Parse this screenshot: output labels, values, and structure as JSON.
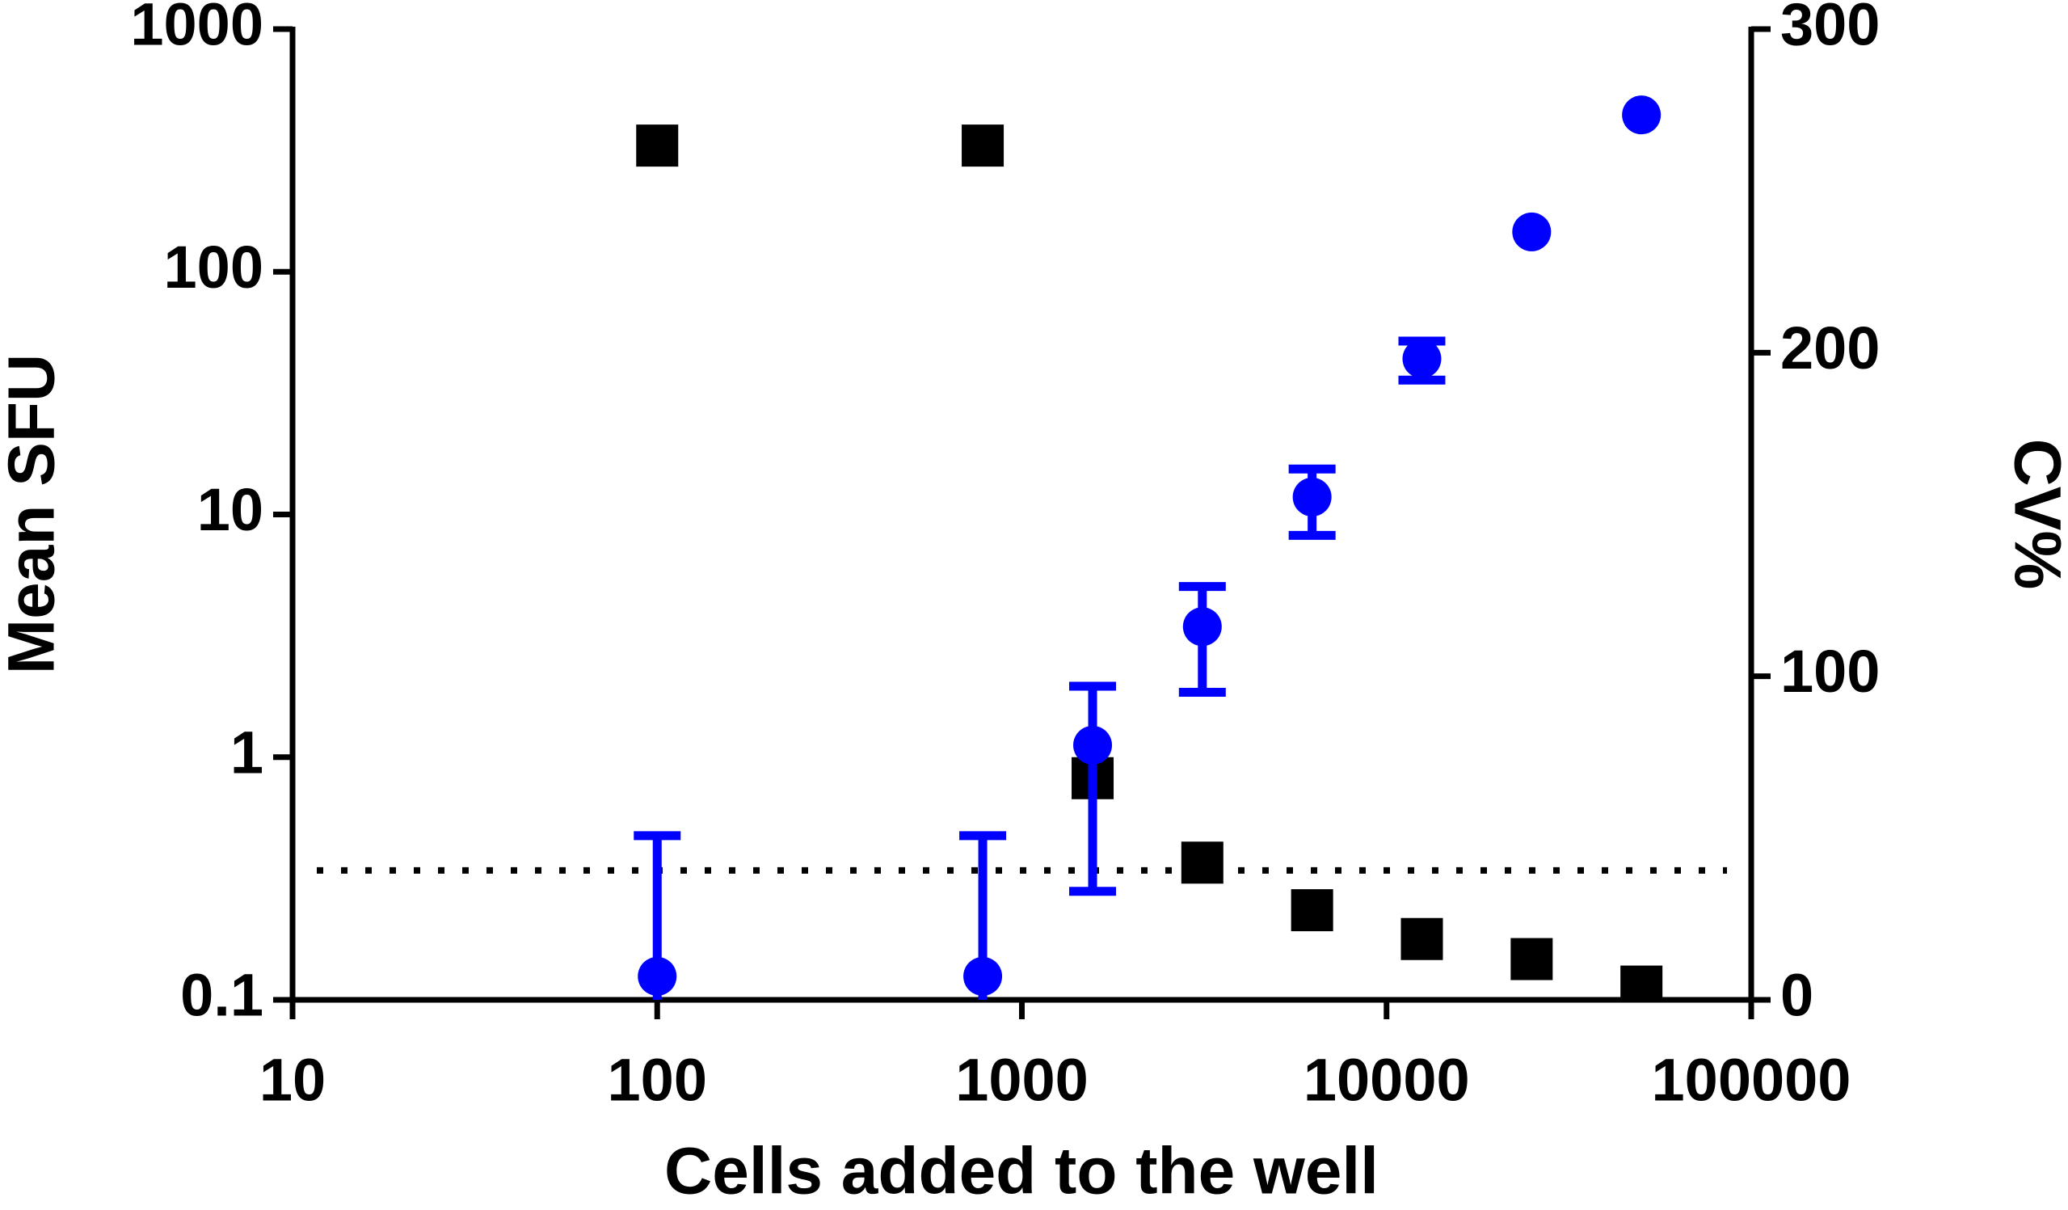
{
  "chart_data": {
    "type": "scatter",
    "x_label": "Cells added to the well",
    "y_label": "Mean SFU",
    "y2_label": "CV%",
    "x_scale": "log",
    "y_scale": "log",
    "xlim": [
      10,
      100000
    ],
    "xticks": [
      10,
      100,
      1000,
      10000,
      100000
    ],
    "ylim": [
      0.1,
      1000
    ],
    "yticks": [
      0.1,
      1,
      10,
      100,
      1000
    ],
    "y2lim": [
      0,
      300
    ],
    "y2ticks": [
      0,
      100,
      200,
      300
    ],
    "x": [
      100,
      781,
      1563,
      3125,
      6250,
      12500,
      25000,
      50000
    ],
    "series": [
      {
        "color": "#0000ff",
        "marker": "circle",
        "axis": "y",
        "values": [
          0.125,
          0.125,
          1.12,
          3.45,
          11.8,
          43.8,
          146,
          443
        ],
        "errors": [
          0.35,
          0.35,
          0.84,
          1.6,
          3.6,
          8,
          null,
          null
        ]
      },
      {
        "color": "#000000",
        "marker": "square",
        "axis": "y2",
        "values": [
          264,
          264,
          68.5,
          42.4,
          27.7,
          18.8,
          12.6,
          4.1
        ]
      }
    ],
    "reference_line": {
      "value": 40,
      "axis": "y2",
      "style": "dotted"
    }
  }
}
